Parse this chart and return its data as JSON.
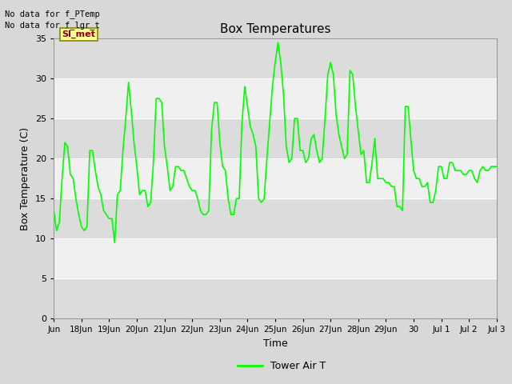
{
  "title": "Box Temperatures",
  "ylabel": "Box Temperature (C)",
  "xlabel": "Time",
  "ylim": [
    0,
    35
  ],
  "y_ticks": [
    0,
    5,
    10,
    15,
    20,
    25,
    30,
    35
  ],
  "fig_facecolor": "#d8d8d8",
  "plot_bg_light": "#f0f0f0",
  "plot_bg_dark": "#e0e0e0",
  "line_color": "#00ff00",
  "no_data_text1": "No data for f_PTemp",
  "no_data_text2": "No data for f_lgr_t",
  "si_met_label": "SI_met",
  "legend_label": "Tower Air T",
  "x_tick_labels": [
    "Jun",
    "18Jun",
    "19Jun",
    "20Jun",
    "21Jun",
    "22Jun",
    "23Jun",
    "24Jun",
    "25Jun",
    "26Jun",
    "27Jun",
    "28Jun",
    "29Jun",
    "30",
    "Jul 1",
    "Jul 2",
    "Jul 3"
  ],
  "x_tick_positions": [
    0,
    1,
    2,
    3,
    4,
    5,
    6,
    7,
    8,
    9,
    10,
    11,
    12,
    13,
    14,
    15,
    16
  ],
  "data_x": [
    0.0,
    0.1,
    0.2,
    0.3,
    0.4,
    0.5,
    0.6,
    0.7,
    0.8,
    0.9,
    1.0,
    1.1,
    1.2,
    1.3,
    1.4,
    1.5,
    1.6,
    1.7,
    1.8,
    1.9,
    2.0,
    2.1,
    2.2,
    2.3,
    2.4,
    2.5,
    2.6,
    2.7,
    2.8,
    2.9,
    3.0,
    3.1,
    3.2,
    3.3,
    3.4,
    3.5,
    3.6,
    3.7,
    3.8,
    3.9,
    4.0,
    4.1,
    4.2,
    4.3,
    4.4,
    4.5,
    4.6,
    4.7,
    4.8,
    4.9,
    5.0,
    5.1,
    5.2,
    5.3,
    5.4,
    5.5,
    5.6,
    5.7,
    5.8,
    5.9,
    6.0,
    6.1,
    6.2,
    6.3,
    6.4,
    6.5,
    6.6,
    6.7,
    6.8,
    6.9,
    7.0,
    7.1,
    7.2,
    7.3,
    7.4,
    7.5,
    7.6,
    7.7,
    7.8,
    7.9,
    8.0,
    8.1,
    8.2,
    8.3,
    8.4,
    8.5,
    8.6,
    8.7,
    8.8,
    8.9,
    9.0,
    9.1,
    9.2,
    9.3,
    9.4,
    9.5,
    9.6,
    9.7,
    9.8,
    9.9,
    10.0,
    10.1,
    10.2,
    10.3,
    10.4,
    10.5,
    10.6,
    10.7,
    10.8,
    10.9,
    11.0,
    11.1,
    11.2,
    11.3,
    11.4,
    11.5,
    11.6,
    11.7,
    11.8,
    11.9,
    12.0,
    12.1,
    12.2,
    12.3,
    12.4,
    12.5,
    12.6,
    12.7,
    12.8,
    12.9,
    13.0,
    13.1,
    13.2,
    13.3,
    13.4,
    13.5,
    13.6,
    13.7,
    13.8,
    13.9,
    14.0,
    14.1,
    14.2,
    14.3,
    14.4,
    14.5,
    14.6,
    14.7,
    14.8,
    14.9,
    15.0,
    15.1,
    15.2,
    15.3,
    15.4,
    15.5,
    15.6,
    15.7,
    15.8,
    15.9,
    16.0
  ],
  "data_y": [
    13.5,
    11.0,
    12.0,
    17.5,
    22.0,
    21.5,
    18.0,
    17.5,
    15.0,
    13.0,
    11.5,
    11.0,
    11.5,
    21.0,
    21.0,
    18.5,
    16.5,
    15.5,
    13.5,
    13.0,
    12.5,
    12.5,
    9.5,
    15.5,
    16.0,
    21.0,
    25.0,
    29.5,
    26.0,
    22.0,
    19.0,
    15.5,
    16.0,
    16.0,
    14.0,
    14.5,
    19.5,
    27.5,
    27.5,
    27.0,
    21.5,
    19.0,
    16.0,
    16.5,
    19.0,
    19.0,
    18.5,
    18.5,
    17.5,
    16.5,
    16.0,
    16.0,
    15.0,
    13.5,
    13.0,
    13.0,
    13.5,
    23.5,
    27.0,
    27.0,
    22.0,
    19.0,
    18.5,
    15.0,
    13.0,
    13.0,
    15.0,
    15.0,
    24.5,
    29.0,
    26.5,
    24.0,
    23.0,
    21.5,
    15.0,
    14.5,
    15.0,
    20.0,
    24.5,
    29.0,
    32.0,
    34.5,
    32.0,
    28.0,
    21.5,
    19.5,
    20.0,
    25.0,
    25.0,
    21.0,
    21.0,
    19.5,
    20.0,
    22.5,
    23.0,
    21.0,
    19.5,
    20.0,
    25.0,
    30.5,
    32.0,
    30.5,
    25.5,
    23.0,
    21.5,
    20.0,
    20.5,
    31.0,
    30.5,
    26.5,
    23.5,
    20.5,
    21.0,
    17.0,
    17.0,
    19.5,
    22.5,
    17.5,
    17.5,
    17.5,
    17.0,
    17.0,
    16.5,
    16.5,
    14.0,
    14.0,
    13.5,
    26.5,
    26.5,
    22.5,
    18.5,
    17.5,
    17.5,
    16.5,
    16.5,
    17.0,
    14.5,
    14.5,
    16.0,
    19.0,
    19.0,
    17.5,
    17.5,
    19.5,
    19.5,
    18.5,
    18.5,
    18.5,
    18.0,
    18.0,
    18.5,
    18.5,
    17.5,
    17.0,
    18.5,
    19.0,
    18.5,
    18.5,
    19.0,
    19.0,
    19.0
  ]
}
